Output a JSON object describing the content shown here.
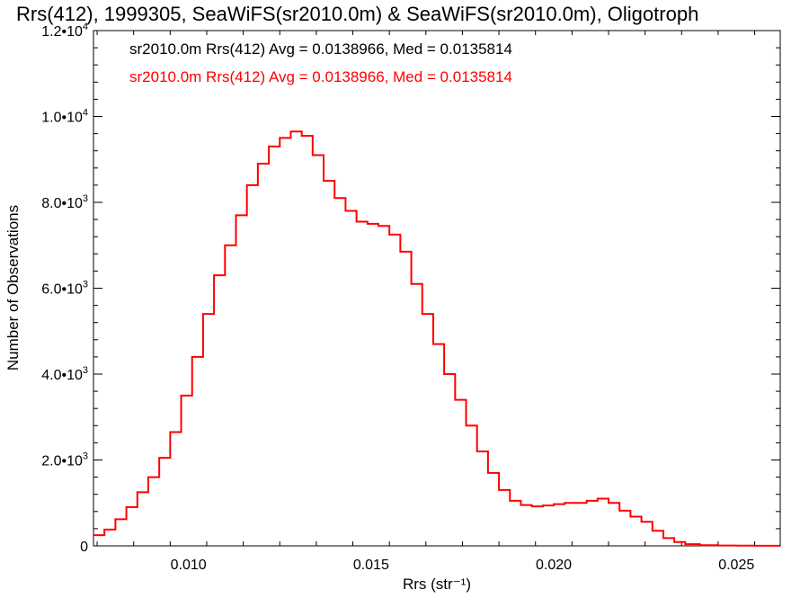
{
  "chart_data": {
    "type": "line",
    "title": "Rrs(412), 1999305, SeaWiFS(sr2010.0m) & SeaWiFS(sr2010.0m), Oligotroph",
    "xlabel": "Rrs (str⁻¹)",
    "ylabel": "Number of Observations",
    "xlim": [
      0.0074,
      0.0262
    ],
    "ylim": [
      0,
      12000
    ],
    "x_ticks": [
      {
        "value": 0.01,
        "label": "0.010"
      },
      {
        "value": 0.015,
        "label": "0.015"
      },
      {
        "value": 0.02,
        "label": "0.020"
      },
      {
        "value": 0.025,
        "label": "0.025"
      }
    ],
    "y_ticks": [
      {
        "value": 0,
        "label": "0",
        "exp": ""
      },
      {
        "value": 2000,
        "label": "2.0•10",
        "exp": "3"
      },
      {
        "value": 4000,
        "label": "4.0•10",
        "exp": "3"
      },
      {
        "value": 6000,
        "label": "6.0•10",
        "exp": "3"
      },
      {
        "value": 8000,
        "label": "8.0•10",
        "exp": "3"
      },
      {
        "value": 10000,
        "label": "1.0•10",
        "exp": "4"
      },
      {
        "value": 12000,
        "label": "1.2•10",
        "exp": "4"
      }
    ],
    "legend": [
      {
        "text": "sr2010.0m Rrs(412) Avg = 0.0138966, Med = 0.0135814",
        "color": "#000000"
      },
      {
        "text": "sr2010.0m Rrs(412) Avg = 0.0138966, Med = 0.0135814",
        "color": "#ff0000"
      }
    ],
    "series": [
      {
        "color": "#ff0000",
        "style": "histogram-step",
        "points": [
          [
            0.0074,
            250
          ],
          [
            0.0077,
            380
          ],
          [
            0.008,
            620
          ],
          [
            0.0083,
            900
          ],
          [
            0.0086,
            1250
          ],
          [
            0.0089,
            1600
          ],
          [
            0.0092,
            2050
          ],
          [
            0.0095,
            2650
          ],
          [
            0.0098,
            3500
          ],
          [
            0.0101,
            4400
          ],
          [
            0.0104,
            5400
          ],
          [
            0.0107,
            6300
          ],
          [
            0.011,
            7000
          ],
          [
            0.0113,
            7700
          ],
          [
            0.0116,
            8400
          ],
          [
            0.0119,
            8900
          ],
          [
            0.0122,
            9300
          ],
          [
            0.0125,
            9500
          ],
          [
            0.0128,
            9650
          ],
          [
            0.0131,
            9550
          ],
          [
            0.0134,
            9100
          ],
          [
            0.0137,
            8500
          ],
          [
            0.014,
            8100
          ],
          [
            0.0143,
            7800
          ],
          [
            0.0146,
            7550
          ],
          [
            0.0149,
            7500
          ],
          [
            0.0152,
            7450
          ],
          [
            0.0155,
            7250
          ],
          [
            0.0158,
            6850
          ],
          [
            0.0161,
            6100
          ],
          [
            0.0164,
            5400
          ],
          [
            0.0167,
            4700
          ],
          [
            0.017,
            4000
          ],
          [
            0.0173,
            3400
          ],
          [
            0.0176,
            2800
          ],
          [
            0.0179,
            2200
          ],
          [
            0.0182,
            1700
          ],
          [
            0.0185,
            1300
          ],
          [
            0.0188,
            1050
          ],
          [
            0.0191,
            950
          ],
          [
            0.0194,
            920
          ],
          [
            0.0197,
            940
          ],
          [
            0.02,
            970
          ],
          [
            0.0203,
            1000
          ],
          [
            0.0206,
            1000
          ],
          [
            0.0209,
            1050
          ],
          [
            0.0212,
            1100
          ],
          [
            0.0215,
            1000
          ],
          [
            0.0218,
            820
          ],
          [
            0.0221,
            680
          ],
          [
            0.0224,
            560
          ],
          [
            0.0227,
            350
          ],
          [
            0.023,
            180
          ],
          [
            0.0233,
            90
          ],
          [
            0.0236,
            40
          ],
          [
            0.024,
            15
          ],
          [
            0.0245,
            8
          ],
          [
            0.025,
            4
          ],
          [
            0.0255,
            2
          ],
          [
            0.0262,
            0
          ]
        ]
      }
    ],
    "grid": false
  }
}
